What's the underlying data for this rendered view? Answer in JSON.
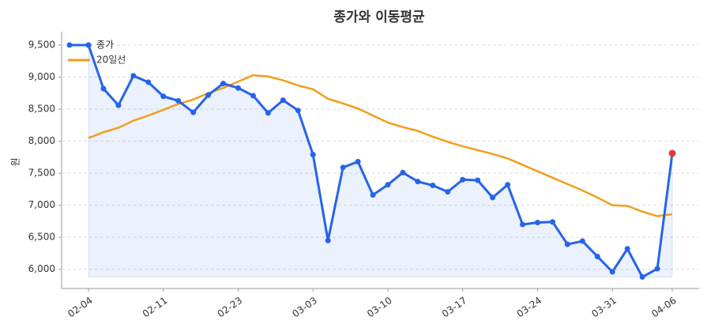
{
  "chart_data": {
    "type": "line",
    "title": "종가와 이동평균",
    "y_label": "원",
    "categories": [
      "02-04",
      null,
      null,
      null,
      null,
      "02-11",
      null,
      null,
      null,
      null,
      "02-23",
      null,
      null,
      null,
      null,
      "03-03",
      null,
      null,
      null,
      null,
      "03-10",
      null,
      null,
      null,
      null,
      "03-17",
      null,
      null,
      null,
      null,
      "03-24",
      null,
      null,
      null,
      null,
      "03-31",
      null,
      null,
      null,
      "04-06"
    ],
    "series": [
      {
        "name": "종가",
        "color": "#2563eb",
        "area": true,
        "markers": true,
        "values": [
          9500,
          8820,
          8560,
          9020,
          8920,
          8700,
          8630,
          8450,
          8720,
          8900,
          8830,
          8710,
          8440,
          8640,
          8480,
          7790,
          6450,
          7590,
          7680,
          7160,
          7320,
          7510,
          7370,
          7310,
          7210,
          7400,
          7390,
          7120,
          7320,
          6700,
          6730,
          6740,
          6390,
          6440,
          6200,
          5960,
          6320,
          5880,
          6010,
          7810
        ]
      },
      {
        "name": "20일선",
        "color": "#f29e1b",
        "area": false,
        "markers": false,
        "values": [
          8050,
          8140,
          8210,
          8320,
          8400,
          8490,
          8580,
          8650,
          8750,
          8830,
          8930,
          9030,
          9010,
          8950,
          8870,
          8810,
          8660,
          8590,
          8510,
          8400,
          8290,
          8220,
          8160,
          8070,
          7990,
          7920,
          7860,
          7800,
          7730,
          7630,
          7530,
          7430,
          7330,
          7230,
          7120,
          7000,
          6990,
          6900,
          6830,
          6860
        ]
      }
    ],
    "highlight_last_color": "#e03b3b",
    "ylim": [
      5700,
      9710
    ],
    "yticks": [
      {
        "value": 6000,
        "label": "6,000"
      },
      {
        "value": 6500,
        "label": "6,500"
      },
      {
        "value": 7000,
        "label": "7,000"
      },
      {
        "value": 7500,
        "label": "7,500"
      },
      {
        "value": 8000,
        "label": "8,000"
      },
      {
        "value": 8500,
        "label": "8,500"
      },
      {
        "value": 9000,
        "label": "9,000"
      },
      {
        "value": 9500,
        "label": "9,500"
      }
    ],
    "grid": true,
    "legend": "upper-left"
  }
}
